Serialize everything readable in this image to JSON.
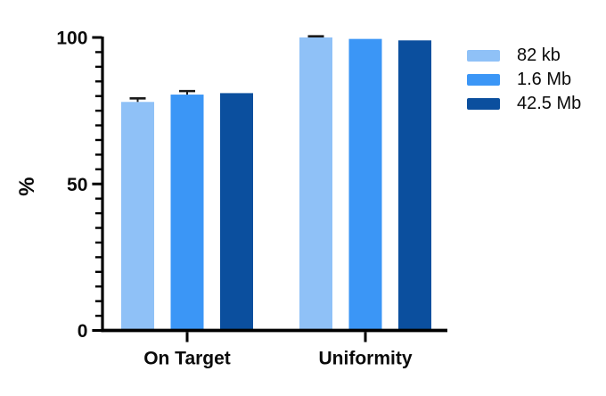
{
  "chart_data": {
    "type": "bar",
    "title": "",
    "xlabel": "",
    "ylabel": "%",
    "categories": [
      "On Target",
      "Uniformity"
    ],
    "series": [
      {
        "name": "82 kb",
        "color": "#8FC1F7",
        "values": [
          78.0,
          100.0
        ],
        "errors": [
          1.2,
          0.4
        ]
      },
      {
        "name": "1.6 Mb",
        "color": "#3B96F6",
        "values": [
          80.5,
          99.5
        ],
        "errors": [
          1.2,
          0.0
        ]
      },
      {
        "name": "42.5 Mb",
        "color": "#0B4F9E",
        "values": [
          81.0,
          99.0
        ],
        "errors": [
          0.0,
          0.0
        ]
      }
    ],
    "ylim": [
      0,
      100
    ],
    "yticks": [
      0,
      50,
      100
    ],
    "minor_tick_step": 5,
    "grid": false,
    "legend_position": "right",
    "axis_color": "#000000",
    "error_bar_color": "#1a1a1a"
  }
}
